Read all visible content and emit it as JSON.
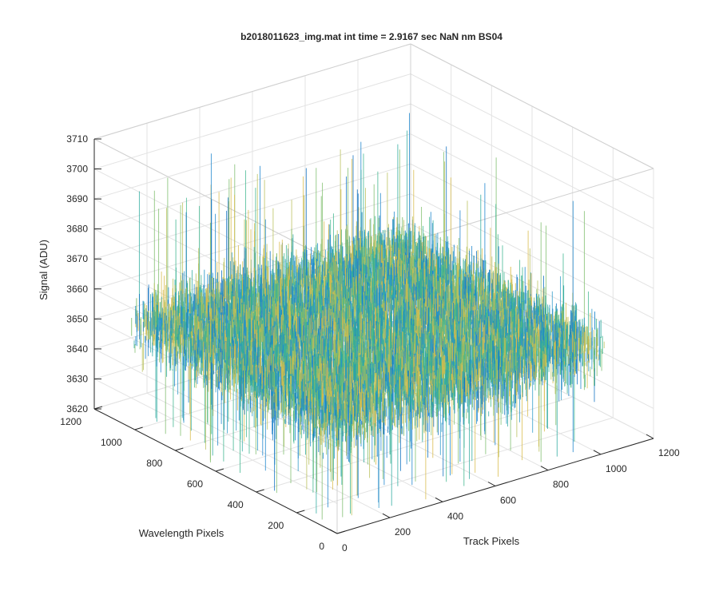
{
  "chart_data": {
    "type": "surface",
    "title": "b2018011623_img.mat int time = 2.9167 sec  NaN nm BS04",
    "xlabel": "Track Pixels",
    "ylabel": "Wavelength Pixels",
    "zlabel": "Signal (ADU)",
    "xlim": [
      0,
      1200
    ],
    "ylim": [
      0,
      1200
    ],
    "zlim": [
      3620,
      3710
    ],
    "x_ticks": [
      "0",
      "200",
      "400",
      "600",
      "800",
      "1000",
      "1200"
    ],
    "y_ticks": [
      "0",
      "200",
      "400",
      "600",
      "800",
      "1000",
      "1200"
    ],
    "z_ticks": [
      "3620",
      "3630",
      "3640",
      "3650",
      "3660",
      "3670",
      "3680",
      "3690",
      "3700",
      "3710"
    ],
    "surface": {
      "data_x_range": [
        0,
        1024
      ],
      "data_y_range": [
        0,
        1024
      ],
      "mean_signal": 3657,
      "typical_min": 3635,
      "typical_max": 3685,
      "colormap": "parula"
    },
    "grid": true,
    "box": "full"
  }
}
